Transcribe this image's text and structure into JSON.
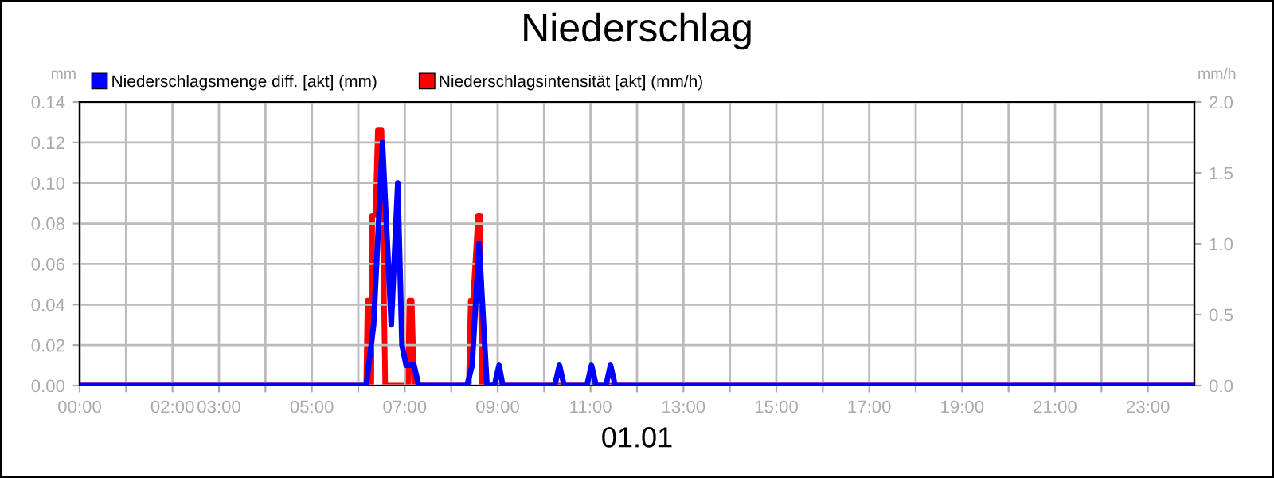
{
  "chart_data": {
    "type": "line",
    "title": "Niederschlag",
    "xlabel": "01.01",
    "ylabel": "mm",
    "y2label": "mm/h",
    "xlim": [
      0,
      24
    ],
    "xticks": [
      {
        "value": 0,
        "label": "00:00"
      },
      {
        "value": 1,
        "label": null
      },
      {
        "value": 2,
        "label": "02:00"
      },
      {
        "value": 3,
        "label": "03:00"
      },
      {
        "value": 4,
        "label": null
      },
      {
        "value": 5,
        "label": "05:00"
      },
      {
        "value": 6,
        "label": null
      },
      {
        "value": 7,
        "label": "07:00"
      },
      {
        "value": 8,
        "label": null
      },
      {
        "value": 9,
        "label": "09:00"
      },
      {
        "value": 10,
        "label": null
      },
      {
        "value": 11,
        "label": "11:00"
      },
      {
        "value": 12,
        "label": null
      },
      {
        "value": 13,
        "label": "13:00"
      },
      {
        "value": 14,
        "label": null
      },
      {
        "value": 15,
        "label": "15:00"
      },
      {
        "value": 16,
        "label": null
      },
      {
        "value": 17,
        "label": "17:00"
      },
      {
        "value": 18,
        "label": null
      },
      {
        "value": 19,
        "label": "19:00"
      },
      {
        "value": 20,
        "label": null
      },
      {
        "value": 21,
        "label": "21:00"
      },
      {
        "value": 22,
        "label": null
      },
      {
        "value": 23,
        "label": "23:00"
      }
    ],
    "ylim": [
      0,
      0.14
    ],
    "yticks": [
      {
        "value": 0,
        "label": "0.00"
      },
      {
        "value": 0.02,
        "label": "0.02"
      },
      {
        "value": 0.04,
        "label": "0.04"
      },
      {
        "value": 0.06,
        "label": "0.06"
      },
      {
        "value": 0.08,
        "label": "0.08"
      },
      {
        "value": 0.1,
        "label": "0.10"
      },
      {
        "value": 0.12,
        "label": "0.12"
      },
      {
        "value": 0.14,
        "label": "0.14"
      }
    ],
    "y2lim": [
      0,
      2
    ],
    "y2ticks": [
      {
        "value": 0,
        "label": "0.0"
      },
      {
        "value": 0.5,
        "label": "0.5"
      },
      {
        "value": 1,
        "label": "1.0"
      },
      {
        "value": 1.5,
        "label": "1.5"
      },
      {
        "value": 2,
        "label": "2.0"
      }
    ],
    "grid": true,
    "legend": "top left",
    "marker": "none",
    "line_style": "solid",
    "series": [
      {
        "name": "Niederschlagsmenge diff. [akt] (mm)",
        "color": "#0000ff",
        "x": [
          0,
          6.17,
          6.33,
          6.52,
          6.71,
          6.85,
          6.94,
          7.03,
          7.2,
          7.3,
          8.34,
          8.45,
          8.6,
          8.77,
          8.93,
          9.03,
          9.11,
          10.23,
          10.33,
          10.43,
          10.92,
          11.02,
          11.12,
          11.33,
          11.43,
          11.53,
          24
        ],
        "values": [
          0,
          0,
          0.03,
          0.12,
          0.03,
          0.1,
          0.02,
          0.01,
          0.01,
          0,
          0,
          0.01,
          0.07,
          0,
          0,
          0.01,
          0,
          0,
          0.01,
          0,
          0,
          0.01,
          0,
          0,
          0.01,
          0,
          0
        ]
      },
      {
        "name": "Niederschlagsintensität [akt] (mm/h)",
        "color": "#ff0000",
        "axis": "y2",
        "x": [
          0,
          6.17,
          6.2,
          6.25,
          6.28,
          6.3,
          6.37,
          6.42,
          6.5,
          6.58,
          7.07,
          7.1,
          7.15,
          7.2,
          8.38,
          8.42,
          8.47,
          8.58,
          8.62,
          8.66,
          24
        ],
        "values": [
          0,
          0,
          0.6,
          0.6,
          0,
          1.2,
          1.2,
          1.8,
          1.8,
          0,
          0,
          0.6,
          0.6,
          0,
          0,
          0.6,
          0.6,
          1.2,
          1.2,
          0,
          0
        ]
      }
    ]
  }
}
